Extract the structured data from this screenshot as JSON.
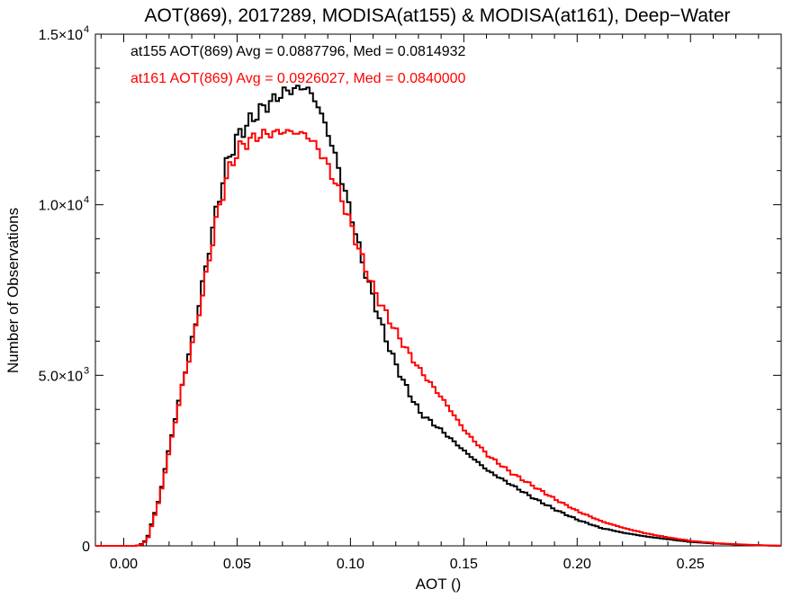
{
  "chart_data": {
    "type": "line",
    "title": "AOT(869), 2017289, MODISA(at155) & MODISA(at161), Deep−Water",
    "xlabel": "AOT ()",
    "ylabel": "Number of Observations",
    "xlim": [
      -0.0125,
      0.29
    ],
    "ylim": [
      0,
      15000
    ],
    "x_ticks": [
      "0.00",
      "0.05",
      "0.10",
      "0.15",
      "0.20",
      "0.25"
    ],
    "y_ticks": [
      {
        "mantissa": "0",
        "exp": ""
      },
      {
        "mantissa": "5.0×10",
        "exp": "3"
      },
      {
        "mantissa": "1.0×10",
        "exp": "4"
      },
      {
        "mantissa": "1.5×10",
        "exp": "4"
      }
    ],
    "grid": false,
    "annotations": [
      "at155 AOT(869) Avg = 0.0887796, Med = 0.0814932",
      "at161 AOT(869) Avg = 0.0926027, Med = 0.0840000"
    ],
    "colors": {
      "at155": "#000000",
      "at161": "#ff0000"
    },
    "x": [
      -0.012,
      0.0,
      0.005,
      0.008,
      0.01,
      0.015,
      0.02,
      0.025,
      0.03,
      0.035,
      0.04,
      0.045,
      0.05,
      0.055,
      0.06,
      0.065,
      0.07,
      0.075,
      0.08,
      0.085,
      0.09,
      0.095,
      0.1,
      0.105,
      0.11,
      0.115,
      0.12,
      0.125,
      0.13,
      0.14,
      0.15,
      0.16,
      0.17,
      0.18,
      0.19,
      0.2,
      0.21,
      0.22,
      0.23,
      0.24,
      0.25,
      0.26,
      0.27,
      0.28,
      0.29
    ],
    "series": [
      {
        "name": "at155",
        "values": [
          0,
          0,
          0,
          80,
          300,
          1400,
          3100,
          4700,
          6200,
          8000,
          9800,
          11300,
          12050,
          12450,
          12800,
          13050,
          13300,
          13400,
          13450,
          12900,
          12000,
          10850,
          9600,
          8200,
          7100,
          6050,
          5200,
          4500,
          3900,
          3350,
          2750,
          2200,
          1800,
          1400,
          1050,
          750,
          520,
          380,
          270,
          190,
          110,
          70,
          40,
          15,
          0
        ]
      },
      {
        "name": "at161",
        "values": [
          0,
          0,
          0,
          60,
          250,
          1350,
          3000,
          4650,
          6050,
          7700,
          9500,
          10900,
          11650,
          11900,
          12050,
          12100,
          12150,
          12120,
          12050,
          11650,
          11050,
          10250,
          9300,
          8300,
          7450,
          6800,
          6200,
          5650,
          5150,
          4300,
          3350,
          2650,
          2150,
          1750,
          1350,
          1000,
          720,
          520,
          360,
          240,
          140,
          80,
          45,
          18,
          0
        ]
      }
    ]
  }
}
